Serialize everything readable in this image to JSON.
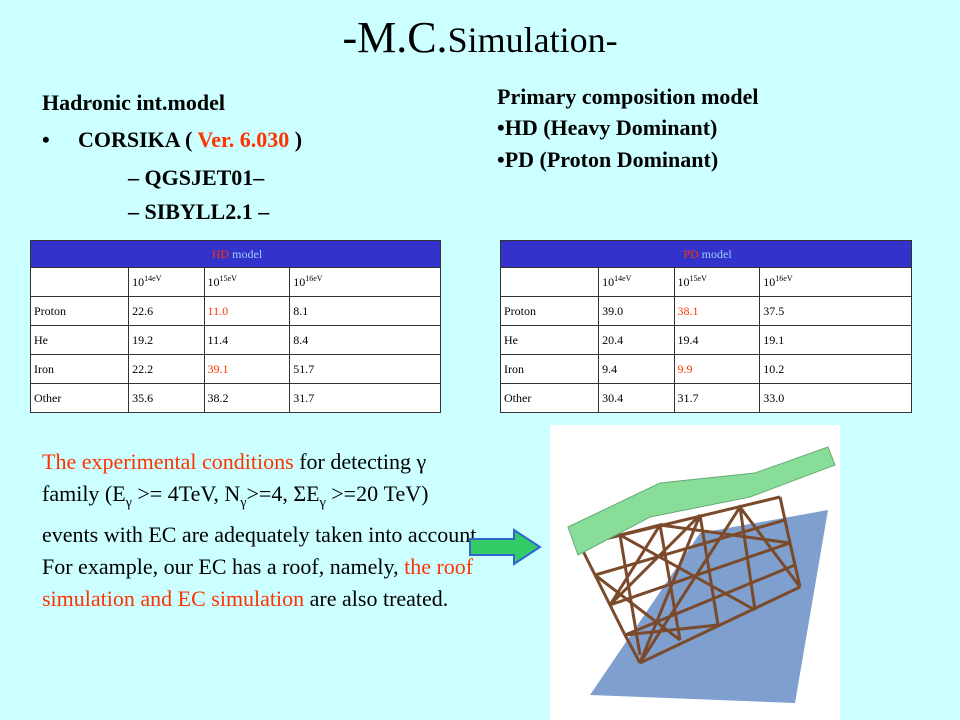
{
  "title": {
    "lead": "-M.C.",
    "rest": "Simulation-"
  },
  "left": {
    "heading": "Hadronic int.model",
    "bullet": {
      "mark": "•",
      "before": "CORSIKA ( ",
      "version": "Ver. 6.030",
      "after": " )"
    },
    "items": [
      "– QGSJET01–",
      "– SIBYLL2.1 –"
    ]
  },
  "right": {
    "heading": "Primary composition model",
    "items": [
      "•HD (Heavy Dominant)",
      "•PD (Proton Dominant)"
    ]
  },
  "tables": [
    {
      "caption": {
        "name": "HD",
        "text": "model"
      },
      "columns": [
        {
          "base": "10",
          "exp": "14eV"
        },
        {
          "base": "10",
          "exp": "15eV"
        },
        {
          "base": "10",
          "exp": "16eV"
        }
      ],
      "rows": [
        [
          "Proton",
          "22.6",
          "11.0",
          "8.1"
        ],
        [
          "He",
          "19.2",
          "11.4",
          "8.4"
        ],
        [
          "Iron",
          "22.2",
          "39.1",
          "51.7"
        ],
        [
          "Other",
          "35.6",
          "38.2",
          "31.7"
        ]
      ]
    },
    {
      "caption": {
        "name": "PD",
        "text": "model"
      },
      "columns": [
        {
          "base": "10",
          "exp": "14eV"
        },
        {
          "base": "10",
          "exp": "15eV"
        },
        {
          "base": "10",
          "exp": "16eV"
        }
      ],
      "rows": [
        [
          "Proton",
          "39.0",
          "38.1",
          "37.5"
        ],
        [
          "He",
          "20.4",
          "19.4",
          "19.1"
        ],
        [
          "Iron",
          "9.4",
          "9.9",
          "10.2"
        ],
        [
          "Other",
          "30.4",
          "31.7",
          "33.0"
        ]
      ]
    }
  ],
  "paragraph": {
    "segments": [
      "The experimental conditions",
      " for detecting γ family (E",
      "γ",
      " >= 4TeV, N",
      "γ",
      ">=4, ΣE",
      "γ",
      " >=20 TeV) events with EC are adequately taken into account. For example, our EC has a roof, namely, ",
      "the roof simulation and EC simulation",
      " are also treated."
    ]
  }
}
